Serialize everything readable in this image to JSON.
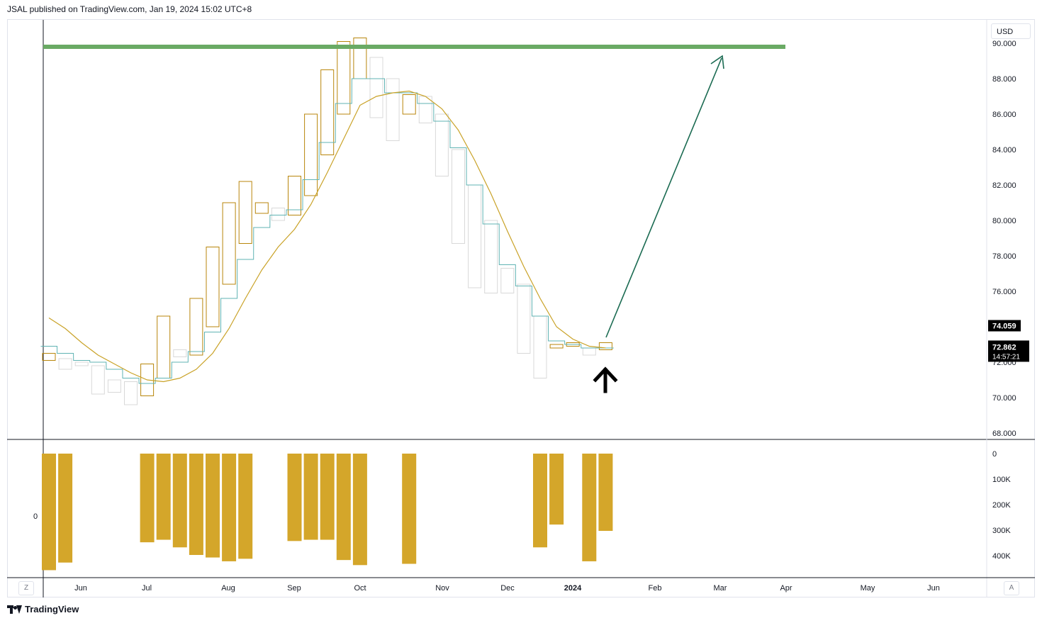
{
  "header": {
    "published": "JSAL published on TradingView.com, Jan 19, 2024 15:02 UTC+8"
  },
  "currency_button": "USD",
  "z_button": "Z",
  "a_button": "A",
  "footer": {
    "brand": "TradingView"
  },
  "colors": {
    "up_candle": "#b8860b",
    "down_candle": "#d8d8d8",
    "ma_short": "#5fb3b3",
    "ma_long": "#c9a227",
    "target_line": "#6aaa64",
    "arrow_line": "#1b6b52",
    "volume": "#d4a62a",
    "axis_text": "#131722"
  },
  "chart_data": {
    "type": "candlestick",
    "title": "",
    "x_labels": [
      "Jun",
      "Jul",
      "Aug",
      "Sep",
      "Oct",
      "Nov",
      "Dec",
      "2024",
      "Feb",
      "Mar",
      "Apr",
      "May",
      "Jun"
    ],
    "y_axis": {
      "ticks": [
        "68.000",
        "70.000",
        "72.000",
        "74.000",
        "76.000",
        "78.000",
        "80.000",
        "82.000",
        "84.000",
        "86.000",
        "88.000",
        "90.000"
      ],
      "range": [
        68,
        90.2
      ]
    },
    "last_price": "72.862",
    "countdown": "14:57:21",
    "price_marker": "74.059",
    "target_level": 89.8,
    "volume_axis": {
      "ticks": [
        "0",
        "100K",
        "200K",
        "300K",
        "400K"
      ],
      "left_label": "0",
      "max": 460
    },
    "candles": [
      {
        "o": 72.1,
        "h": 72.9,
        "l": 72.1,
        "c": 72.5
      },
      {
        "o": 72.2,
        "h": 72.3,
        "l": 71.5,
        "c": 71.6
      },
      {
        "o": 72.0,
        "h": 72.0,
        "l": 71.8,
        "c": 71.8
      },
      {
        "o": 71.8,
        "h": 71.8,
        "l": 70.2,
        "c": 70.2
      },
      {
        "o": 71.0,
        "h": 71.0,
        "l": 70.3,
        "c": 70.3
      },
      {
        "o": 70.9,
        "h": 70.9,
        "l": 69.6,
        "c": 69.6
      },
      {
        "o": 70.1,
        "h": 71.9,
        "l": 70.1,
        "c": 71.9
      },
      {
        "o": 71.1,
        "h": 74.6,
        "l": 71.1,
        "c": 74.6
      },
      {
        "o": 72.7,
        "h": 72.9,
        "l": 72.3,
        "c": 72.3
      },
      {
        "o": 72.4,
        "h": 75.6,
        "l": 72.4,
        "c": 75.6
      },
      {
        "o": 74.0,
        "h": 78.5,
        "l": 74.0,
        "c": 78.5
      },
      {
        "o": 76.4,
        "h": 81.0,
        "l": 76.4,
        "c": 81.0
      },
      {
        "o": 78.7,
        "h": 82.2,
        "l": 78.7,
        "c": 82.2
      },
      {
        "o": 80.4,
        "h": 81.0,
        "l": 80.4,
        "c": 81.0
      },
      {
        "o": 80.7,
        "h": 80.7,
        "l": 80.0,
        "c": 80.0
      },
      {
        "o": 80.3,
        "h": 82.5,
        "l": 80.3,
        "c": 82.5
      },
      {
        "o": 81.4,
        "h": 86.0,
        "l": 81.4,
        "c": 86.0
      },
      {
        "o": 83.7,
        "h": 88.5,
        "l": 83.7,
        "c": 88.5
      },
      {
        "o": 86.0,
        "h": 90.1,
        "l": 86.0,
        "c": 90.1
      },
      {
        "o": 88.0,
        "h": 90.3,
        "l": 88.0,
        "c": 90.3
      },
      {
        "o": 89.2,
        "h": 89.2,
        "l": 85.8,
        "c": 85.8
      },
      {
        "o": 88.0,
        "h": 88.0,
        "l": 84.5,
        "c": 84.5
      },
      {
        "o": 86.0,
        "h": 87.1,
        "l": 86.0,
        "c": 87.1
      },
      {
        "o": 87.0,
        "h": 87.0,
        "l": 85.5,
        "c": 85.5
      },
      {
        "o": 86.0,
        "h": 86.0,
        "l": 82.5,
        "c": 82.5
      },
      {
        "o": 84.0,
        "h": 84.0,
        "l": 78.7,
        "c": 78.7
      },
      {
        "o": 82.0,
        "h": 82.0,
        "l": 76.2,
        "c": 76.2
      },
      {
        "o": 80.0,
        "h": 80.0,
        "l": 75.9,
        "c": 75.9
      },
      {
        "o": 77.3,
        "h": 77.3,
        "l": 75.9,
        "c": 75.9
      },
      {
        "o": 76.4,
        "h": 76.4,
        "l": 72.5,
        "c": 72.5
      },
      {
        "o": 74.6,
        "h": 74.6,
        "l": 71.1,
        "c": 71.1
      },
      {
        "o": 72.8,
        "h": 73.0,
        "l": 72.8,
        "c": 73.0
      },
      {
        "o": 72.9,
        "h": 73.1,
        "l": 72.9,
        "c": 73.1
      },
      {
        "o": 72.8,
        "h": 72.8,
        "l": 72.4,
        "c": 72.4
      },
      {
        "o": 72.7,
        "h": 73.1,
        "l": 72.7,
        "c": 73.1
      }
    ],
    "ma_short": [
      72.9,
      72.5,
      72.1,
      72.0,
      71.6,
      71.1,
      70.8,
      71.1,
      72.0,
      72.6,
      73.7,
      75.6,
      77.8,
      79.6,
      80.3,
      80.6,
      82.3,
      84.4,
      86.6,
      88.0,
      88.0,
      87.2,
      87.2,
      86.6,
      85.6,
      84.1,
      82.0,
      79.8,
      77.5,
      76.3,
      74.6,
      73.2,
      73.0,
      72.8,
      72.8
    ],
    "ma_long": [
      74.5,
      73.9,
      73.1,
      72.4,
      71.9,
      71.4,
      71.0,
      70.9,
      71.1,
      71.6,
      72.5,
      73.9,
      75.6,
      77.2,
      78.5,
      79.5,
      80.9,
      82.7,
      84.6,
      86.5,
      87.0,
      87.2,
      87.3,
      87.0,
      86.3,
      85.1,
      83.4,
      81.5,
      79.4,
      77.4,
      75.6,
      74.0,
      73.3,
      72.9,
      72.8
    ],
    "volume": [
      460,
      430,
      0,
      0,
      0,
      0,
      350,
      340,
      370,
      400,
      410,
      425,
      415,
      0,
      0,
      345,
      340,
      340,
      420,
      440,
      0,
      0,
      435,
      0,
      0,
      0,
      0,
      0,
      0,
      0,
      370,
      280,
      0,
      425,
      305
    ]
  }
}
